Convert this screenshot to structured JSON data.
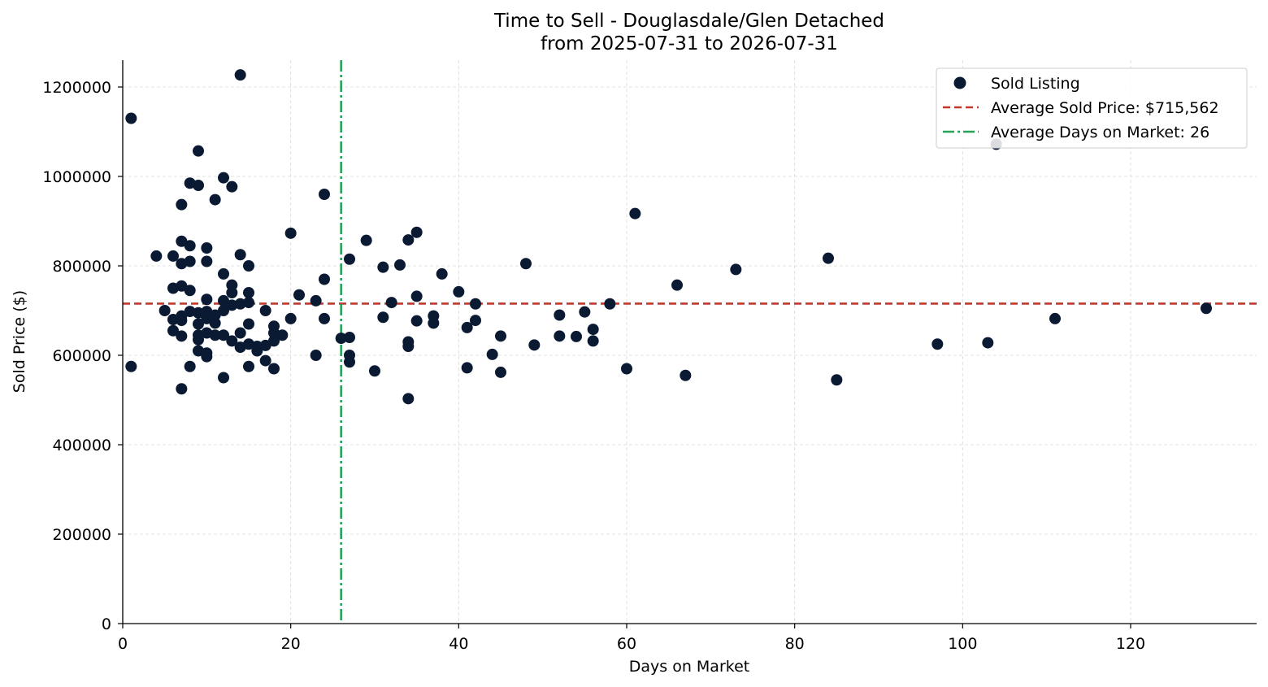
{
  "colors": {
    "points": "#0b1a33",
    "avg_price_line": "#c0392b",
    "avg_days_line": "#27a35a",
    "grid": "#d9d9d9"
  },
  "chart_data": {
    "type": "scatter",
    "title": "Time to Sell - Douglasdale/Glen Detached",
    "subtitle": "from 2025-07-31 to 2026-07-31",
    "xlabel": "Days on Market",
    "ylabel": "Sold Price ($)",
    "xlim": [
      0,
      135
    ],
    "ylim": [
      0,
      1260000
    ],
    "xticks": [
      0,
      20,
      40,
      60,
      80,
      100,
      120
    ],
    "yticks": [
      0,
      200000,
      400000,
      600000,
      800000,
      1000000,
      1200000
    ],
    "grid": true,
    "legend_position": "top-right",
    "legend": {
      "points": "Sold Listing",
      "avg_price": "Average Sold Price: $715,562",
      "avg_days": "Average Days on Market: 26"
    },
    "avg_price": 715562,
    "avg_days": 26,
    "series": [
      {
        "name": "Sold Listing",
        "points": [
          [
            1,
            1130000
          ],
          [
            1,
            575000
          ],
          [
            4,
            822000
          ],
          [
            5,
            700000
          ],
          [
            6,
            822000
          ],
          [
            6,
            750000
          ],
          [
            6,
            680000
          ],
          [
            6,
            655000
          ],
          [
            7,
            937000
          ],
          [
            7,
            855000
          ],
          [
            7,
            805000
          ],
          [
            7,
            755000
          ],
          [
            7,
            688000
          ],
          [
            7,
            678000
          ],
          [
            7,
            643000
          ],
          [
            7,
            525000
          ],
          [
            8,
            985000
          ],
          [
            8,
            845000
          ],
          [
            8,
            810000
          ],
          [
            8,
            745000
          ],
          [
            8,
            698000
          ],
          [
            8,
            575000
          ],
          [
            9,
            1057000
          ],
          [
            9,
            980000
          ],
          [
            9,
            695000
          ],
          [
            9,
            670000
          ],
          [
            9,
            645000
          ],
          [
            9,
            635000
          ],
          [
            9,
            610000
          ],
          [
            10,
            840000
          ],
          [
            10,
            810000
          ],
          [
            10,
            725000
          ],
          [
            10,
            698000
          ],
          [
            10,
            682000
          ],
          [
            10,
            650000
          ],
          [
            10,
            605000
          ],
          [
            10,
            597000
          ],
          [
            11,
            948000
          ],
          [
            11,
            690000
          ],
          [
            11,
            672000
          ],
          [
            11,
            645000
          ],
          [
            12,
            997000
          ],
          [
            12,
            782000
          ],
          [
            12,
            722000
          ],
          [
            12,
            700000
          ],
          [
            12,
            645000
          ],
          [
            12,
            550000
          ],
          [
            13,
            977000
          ],
          [
            13,
            757000
          ],
          [
            13,
            740000
          ],
          [
            13,
            712000
          ],
          [
            13,
            632000
          ],
          [
            14,
            1227000
          ],
          [
            14,
            825000
          ],
          [
            14,
            715000
          ],
          [
            14,
            650000
          ],
          [
            14,
            618000
          ],
          [
            15,
            800000
          ],
          [
            15,
            740000
          ],
          [
            15,
            718000
          ],
          [
            15,
            670000
          ],
          [
            15,
            625000
          ],
          [
            15,
            575000
          ],
          [
            16,
            620000
          ],
          [
            16,
            610000
          ],
          [
            17,
            700000
          ],
          [
            17,
            622000
          ],
          [
            17,
            588000
          ],
          [
            18,
            665000
          ],
          [
            18,
            650000
          ],
          [
            18,
            632000
          ],
          [
            18,
            570000
          ],
          [
            19,
            645000
          ],
          [
            20,
            873000
          ],
          [
            20,
            682000
          ],
          [
            21,
            735000
          ],
          [
            23,
            722000
          ],
          [
            23,
            600000
          ],
          [
            24,
            960000
          ],
          [
            24,
            770000
          ],
          [
            24,
            682000
          ],
          [
            26,
            638000
          ],
          [
            27,
            815000
          ],
          [
            27,
            640000
          ],
          [
            27,
            600000
          ],
          [
            27,
            585000
          ],
          [
            29,
            857000
          ],
          [
            30,
            565000
          ],
          [
            31,
            797000
          ],
          [
            31,
            685000
          ],
          [
            32,
            718000
          ],
          [
            33,
            802000
          ],
          [
            34,
            858000
          ],
          [
            34,
            630000
          ],
          [
            34,
            620000
          ],
          [
            34,
            503000
          ],
          [
            35,
            875000
          ],
          [
            35,
            732000
          ],
          [
            35,
            677000
          ],
          [
            37,
            688000
          ],
          [
            37,
            672000
          ],
          [
            38,
            782000
          ],
          [
            40,
            742000
          ],
          [
            41,
            662000
          ],
          [
            41,
            572000
          ],
          [
            42,
            715000
          ],
          [
            42,
            678000
          ],
          [
            44,
            602000
          ],
          [
            45,
            643000
          ],
          [
            45,
            562000
          ],
          [
            48,
            805000
          ],
          [
            49,
            623000
          ],
          [
            52,
            690000
          ],
          [
            52,
            643000
          ],
          [
            54,
            642000
          ],
          [
            55,
            697000
          ],
          [
            56,
            658000
          ],
          [
            56,
            632000
          ],
          [
            58,
            715000
          ],
          [
            60,
            570000
          ],
          [
            61,
            917000
          ],
          [
            66,
            757000
          ],
          [
            67,
            555000
          ],
          [
            73,
            792000
          ],
          [
            84,
            817000
          ],
          [
            85,
            545000
          ],
          [
            97,
            625000
          ],
          [
            103,
            628000
          ],
          [
            104,
            1072000
          ],
          [
            111,
            682000
          ],
          [
            129,
            705000
          ]
        ]
      }
    ]
  }
}
